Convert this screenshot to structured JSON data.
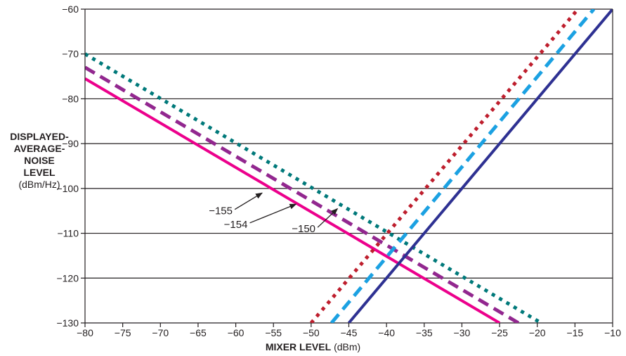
{
  "chart_data": {
    "type": "line",
    "xlabel_main": "MIXER LEVEL",
    "xlabel_unit": "(dBm)",
    "ylabel_lines": [
      "DISPLAYED-",
      "AVERAGE-",
      "NOISE",
      "LEVEL"
    ],
    "ylabel_unit": "(dBm/Hz)",
    "xlim": [
      -80,
      -10
    ],
    "ylim": [
      -130,
      -60
    ],
    "x_ticks": [
      -80,
      -75,
      -70,
      -65,
      -60,
      -55,
      -50,
      -45,
      -40,
      -35,
      -30,
      -25,
      -20,
      -15,
      -10
    ],
    "x_tick_labels": [
      "−80",
      "−75",
      "−70",
      "−65",
      "−60",
      "−55",
      "−50",
      "−45",
      "−40",
      "−35",
      "−30",
      "−25",
      "−20",
      "−15",
      "−10"
    ],
    "y_ticks": [
      -60,
      -70,
      -80,
      -90,
      -100,
      -110,
      -120,
      -130
    ],
    "y_tick_labels": [
      "−60",
      "−70",
      "−80",
      "−90",
      "−100",
      "−110",
      "−120",
      "−130"
    ],
    "grid": "horizontal",
    "series": [
      {
        "style": "solid",
        "color": "#ec008c",
        "x": [
          -80,
          -25
        ],
        "y": [
          -75.5,
          -130
        ]
      },
      {
        "style": "dashed",
        "color": "#92278f",
        "x": [
          -80,
          -22.5
        ],
        "y": [
          -73,
          -130
        ]
      },
      {
        "style": "dotted",
        "color": "#00797a",
        "x": [
          -80,
          -19.5
        ],
        "y": [
          -70,
          -130
        ]
      },
      {
        "style": "dotted",
        "color": "#be1e2d",
        "x": [
          -50,
          -14.6
        ],
        "y": [
          -130,
          -60
        ]
      },
      {
        "style": "dashed",
        "color": "#1ba1e2",
        "x": [
          -47.3,
          -12.5
        ],
        "y": [
          -130,
          -60
        ]
      },
      {
        "style": "solid",
        "color": "#2e3192",
        "x": [
          -45,
          -10
        ],
        "y": [
          -130,
          -60
        ]
      }
    ],
    "annotations": [
      {
        "text": "−155",
        "tx": -62,
        "ty": -105,
        "ax": -56.5,
        "ay": -101
      },
      {
        "text": "−154",
        "tx": -60,
        "ty": -108,
        "ax": -52,
        "ay": -103.5
      },
      {
        "text": "−150",
        "tx": -51,
        "ty": -109,
        "ax": -46.5,
        "ay": -104.5
      }
    ]
  }
}
